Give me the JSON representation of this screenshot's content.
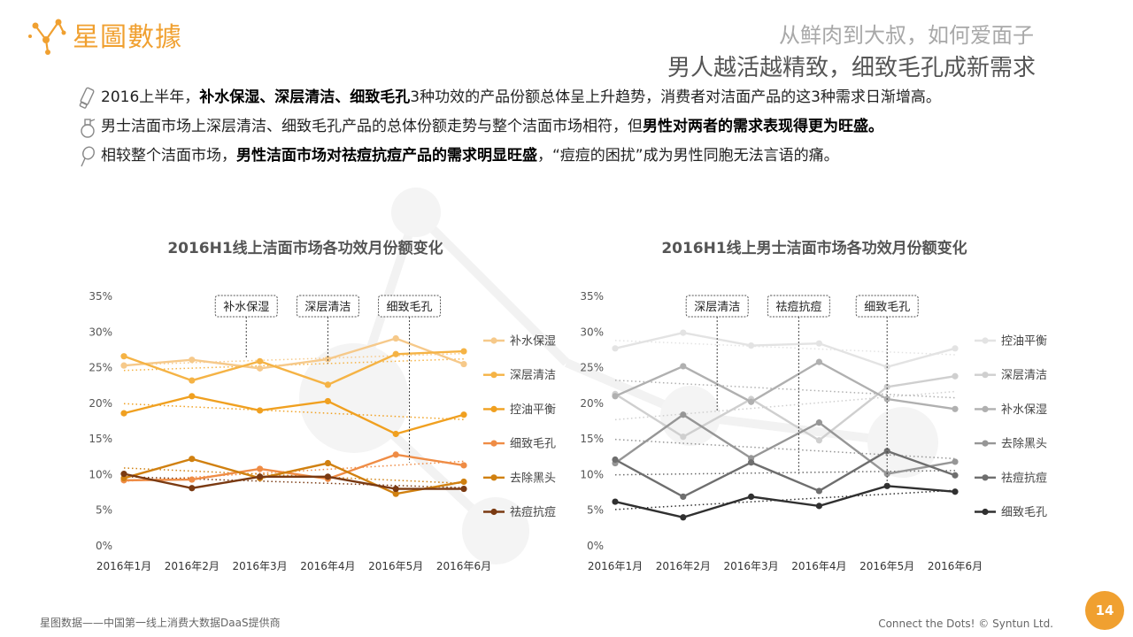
{
  "header": {
    "brand": "星圖數據",
    "subtitle": "从鲜肉到大叔，如何爱面子",
    "title": "男人越活越精致，细致毛孔成新需求"
  },
  "bullets": [
    {
      "icon": "tube-icon",
      "parts": [
        {
          "t": "2016上半年，",
          "b": false
        },
        {
          "t": "补水保湿、深层清洁、细致毛孔",
          "b": true
        },
        {
          "t": "3种功效的产品份额总体呈上升趋势，消费者对洁面产品的这3种需求日渐增高。",
          "b": false
        }
      ]
    },
    {
      "icon": "bottle-icon",
      "parts": [
        {
          "t": "男士洁面市场上深层清洁、细致毛孔产品的总体份额走势与整个洁面市场相符，但",
          "b": false
        },
        {
          "t": "男性对两者的需求表现得更为旺盛。",
          "b": true
        }
      ]
    },
    {
      "icon": "razor-icon",
      "parts": [
        {
          "t": "相较整个洁面市场，",
          "b": false
        },
        {
          "t": "男性洁面市场对祛痘抗痘产品的需求明显旺盛",
          "b": true
        },
        {
          "t": "，“痘痘的困扰”成为男性同胞无法言语的痛。",
          "b": false
        }
      ]
    }
  ],
  "chart_data": [
    {
      "type": "line",
      "title": "2016H1线上洁面市场各功效月份额变化",
      "categories": [
        "2016年1月",
        "2016年2月",
        "2016年3月",
        "2016年4月",
        "2016年5月",
        "2016年6月"
      ],
      "ylim": [
        0,
        35
      ],
      "yticks": [
        "0%",
        "5%",
        "10%",
        "15%",
        "20%",
        "25%",
        "30%",
        "35%"
      ],
      "trendlines": true,
      "legend": "right",
      "series": [
        {
          "name": "补水保湿",
          "color": "#f6c98a",
          "values": [
            25.3,
            26.1,
            24.9,
            26.2,
            29.1,
            25.5
          ]
        },
        {
          "name": "深层清洁",
          "color": "#f5b345",
          "values": [
            26.6,
            23.2,
            25.9,
            22.6,
            26.9,
            27.3
          ]
        },
        {
          "name": "控油平衡",
          "color": "#f0a020",
          "values": [
            18.6,
            21.0,
            19.0,
            20.3,
            15.7,
            18.4
          ]
        },
        {
          "name": "细致毛孔",
          "color": "#ef8c45",
          "values": [
            9.2,
            9.3,
            10.8,
            9.4,
            12.8,
            11.3
          ]
        },
        {
          "name": "去除黑头",
          "color": "#d08010",
          "values": [
            9.5,
            12.2,
            9.5,
            11.6,
            7.3,
            9.0
          ]
        },
        {
          "name": "祛痘抗痘",
          "color": "#7a3a12",
          "values": [
            10.1,
            8.1,
            9.7,
            9.7,
            8.0,
            8.0
          ]
        }
      ],
      "callouts": [
        {
          "label": "补水保湿",
          "x": 1.8,
          "y": 26.2
        },
        {
          "label": "深层清洁",
          "x": 3.0,
          "y": 25.6
        },
        {
          "label": "细致毛孔",
          "x": 4.2,
          "y": 11.7
        }
      ]
    },
    {
      "type": "line",
      "title": "2016H1线上男士洁面市场各功效月份额变化",
      "categories": [
        "2016年1月",
        "2016年2月",
        "2016年3月",
        "2016年4月",
        "2016年5月",
        "2016年6月"
      ],
      "ylim": [
        0,
        35
      ],
      "yticks": [
        "0%",
        "5%",
        "10%",
        "15%",
        "20%",
        "25%",
        "30%",
        "35%"
      ],
      "trendlines": true,
      "legend": "right",
      "series": [
        {
          "name": "控油平衡",
          "color": "#e3e3e3",
          "values": [
            27.7,
            29.9,
            28.1,
            28.4,
            25.1,
            27.7
          ]
        },
        {
          "name": "深层清洁",
          "color": "#cfcfcf",
          "values": [
            21.3,
            15.3,
            20.6,
            14.8,
            22.3,
            23.8
          ]
        },
        {
          "name": "补水保湿",
          "color": "#b0b0b0",
          "values": [
            21.0,
            25.2,
            20.2,
            25.8,
            20.6,
            19.2
          ]
        },
        {
          "name": "去除黑头",
          "color": "#969696",
          "values": [
            11.6,
            18.4,
            12.3,
            17.3,
            10.1,
            11.8
          ]
        },
        {
          "name": "祛痘抗痘",
          "color": "#6e6e6e",
          "values": [
            12.1,
            6.9,
            11.7,
            7.7,
            13.3,
            9.9
          ]
        },
        {
          "name": "细致毛孔",
          "color": "#303030",
          "values": [
            6.2,
            4.0,
            6.9,
            5.6,
            8.4,
            7.6
          ]
        }
      ],
      "callouts": [
        {
          "label": "深层清洁",
          "x": 1.5,
          "y": 18.8
        },
        {
          "label": "祛痘抗痘",
          "x": 2.7,
          "y": 10.1
        },
        {
          "label": "细致毛孔",
          "x": 4.0,
          "y": 8.6
        }
      ]
    }
  ],
  "footer": {
    "left": "星图数据——中国第一线上消费大数据DaaS提供商",
    "right": "Connect the Dots!  © Syntun Ltd.",
    "page": "14"
  }
}
